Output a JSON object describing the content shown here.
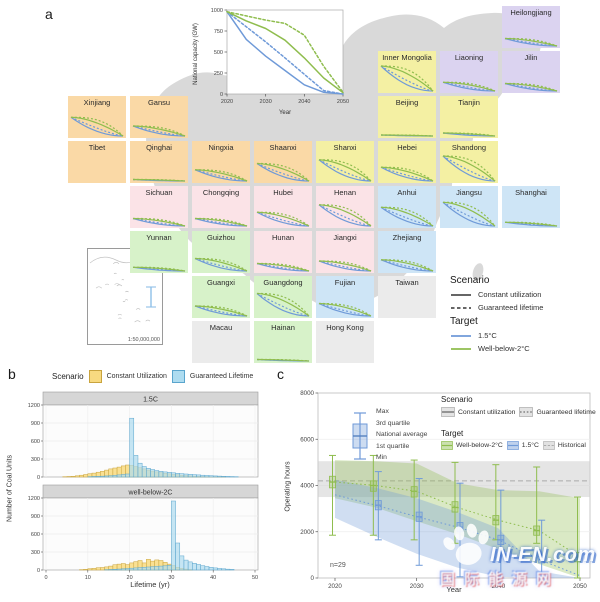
{
  "panels": {
    "a": "a",
    "b": "b",
    "c": "c"
  },
  "colors": {
    "green": "#8fbd4e",
    "blue": "#6f9ad8",
    "black": "#333333",
    "hist_yellow_fill": "#f8da80",
    "hist_yellow_stroke": "#c9a43e",
    "hist_blue_fill": "#aedcf0",
    "hist_blue_stroke": "#5aa5cd",
    "historical_fill": "#cfcfcf",
    "regions": {
      "northeast": "#dbd3f0",
      "north": "#f4f0a3",
      "northwest": "#fad9a6",
      "central": "#fbe3e7",
      "east": "#cee5f6",
      "south": "#d7f2c9",
      "none": "#ebebeb"
    }
  },
  "map": {
    "sea_inset_scale": "1:50,000,000",
    "legend": {
      "scenario_title": "Scenario",
      "scenarios": [
        {
          "label": "Constant utilization",
          "dash": false
        },
        {
          "label": "Guaranteed lifetime",
          "dash": true
        }
      ],
      "target_title": "Target",
      "targets": [
        {
          "label": "1.5°C",
          "color_key": "blue"
        },
        {
          "label": "Well-below-2°C",
          "color_key": "green"
        }
      ]
    },
    "tiles": [
      {
        "name": "Heilongjiang",
        "row": 0,
        "col": 7,
        "region": "northeast",
        "mag": 0.3
      },
      {
        "name": "Inner Mongolia",
        "row": 1,
        "col": 5,
        "region": "north",
        "mag": 1.0
      },
      {
        "name": "Liaoning",
        "row": 1,
        "col": 6,
        "region": "northeast",
        "mag": 0.35
      },
      {
        "name": "Jilin",
        "row": 1,
        "col": 7,
        "region": "northeast",
        "mag": 0.3
      },
      {
        "name": "Xinjiang",
        "row": 2,
        "col": 0,
        "region": "northwest",
        "mag": 0.75
      },
      {
        "name": "Gansu",
        "row": 2,
        "col": 1,
        "region": "northwest",
        "mag": 0.4
      },
      {
        "name": "Beijing",
        "row": 2,
        "col": 5,
        "region": "north",
        "mag": 0.04
      },
      {
        "name": "Tianjin",
        "row": 2,
        "col": 6,
        "region": "north",
        "mag": 0.12
      },
      {
        "name": "Tibet",
        "row": 3,
        "col": 0,
        "region": "northwest",
        "mag": 0
      },
      {
        "name": "Qinghai",
        "row": 3,
        "col": 1,
        "region": "northwest",
        "mag": 0.06
      },
      {
        "name": "Ningxia",
        "row": 3,
        "col": 2,
        "region": "northwest",
        "mag": 0.45
      },
      {
        "name": "Shaanxi",
        "row": 3,
        "col": 3,
        "region": "northwest",
        "mag": 0.7
      },
      {
        "name": "Shanxi",
        "row": 3,
        "col": 4,
        "region": "north",
        "mag": 0.85
      },
      {
        "name": "Hebei",
        "row": 3,
        "col": 5,
        "region": "north",
        "mag": 0.55
      },
      {
        "name": "Shandong",
        "row": 3,
        "col": 6,
        "region": "north",
        "mag": 1.0
      },
      {
        "name": "Sichuan",
        "row": 4,
        "col": 1,
        "region": "central",
        "mag": 0.3
      },
      {
        "name": "Chongqing",
        "row": 4,
        "col": 2,
        "region": "central",
        "mag": 0.3
      },
      {
        "name": "Hubei",
        "row": 4,
        "col": 3,
        "region": "central",
        "mag": 0.55
      },
      {
        "name": "Henan",
        "row": 4,
        "col": 4,
        "region": "central",
        "mag": 0.85
      },
      {
        "name": "Anhui",
        "row": 4,
        "col": 5,
        "region": "east",
        "mag": 0.75
      },
      {
        "name": "Jiangsu",
        "row": 4,
        "col": 6,
        "region": "east",
        "mag": 0.95
      },
      {
        "name": "Shanghai",
        "row": 4,
        "col": 7,
        "region": "east",
        "mag": 0.15
      },
      {
        "name": "Yunnan",
        "row": 5,
        "col": 1,
        "region": "south",
        "mag": 0.15
      },
      {
        "name": "Guizhou",
        "row": 5,
        "col": 2,
        "region": "south",
        "mag": 0.5
      },
      {
        "name": "Hunan",
        "row": 5,
        "col": 3,
        "region": "central",
        "mag": 0.3
      },
      {
        "name": "Jiangxi",
        "row": 5,
        "col": 4,
        "region": "central",
        "mag": 0.4
      },
      {
        "name": "Zhejiang",
        "row": 5,
        "col": 5,
        "region": "east",
        "mag": 0.45
      },
      {
        "name": "Guangxi",
        "row": 6,
        "col": 2,
        "region": "south",
        "mag": 0.4
      },
      {
        "name": "Guangdong",
        "row": 6,
        "col": 3,
        "region": "south",
        "mag": 0.9
      },
      {
        "name": "Fujian",
        "row": 6,
        "col": 4,
        "region": "east",
        "mag": 0.5
      },
      {
        "name": "Taiwan",
        "row": 6,
        "col": 5,
        "region": "none",
        "mag": 0
      },
      {
        "name": "Macau",
        "row": 7,
        "col": 2,
        "region": "none",
        "mag": 0
      },
      {
        "name": "Hainan",
        "row": 7,
        "col": 3,
        "region": "south",
        "mag": 0.06
      },
      {
        "name": "Hong Kong",
        "row": 7,
        "col": 4,
        "region": "none",
        "mag": 0
      }
    ]
  },
  "chart_data": [
    {
      "id": "national_capacity",
      "type": "line",
      "ylabel": "National capacity (GW)",
      "xlabel": "Year",
      "x": [
        2020,
        2025,
        2030,
        2035,
        2040,
        2045,
        2050
      ],
      "ylim": [
        0,
        1000
      ],
      "yticks": [
        0,
        250,
        500,
        750,
        1000
      ],
      "xticks": [
        2020,
        2030,
        2040,
        2050
      ],
      "series": [
        {
          "name": "1.5C constant utilization",
          "color": "blue",
          "dash": false,
          "values": [
            980,
            650,
            450,
            280,
            110,
            20,
            0
          ]
        },
        {
          "name": "1.5C guaranteed lifetime",
          "color": "blue",
          "dash": true,
          "values": [
            980,
            800,
            620,
            430,
            235,
            40,
            0
          ]
        },
        {
          "name": "Well-below-2C constant utilization",
          "color": "green",
          "dash": false,
          "values": [
            980,
            870,
            780,
            640,
            430,
            190,
            15
          ]
        },
        {
          "name": "Well-below-2C guaranteed lifetime",
          "color": "green",
          "dash": true,
          "values": [
            980,
            930,
            880,
            840,
            700,
            330,
            20
          ]
        }
      ]
    },
    {
      "id": "lifetime_histograms",
      "type": "bar",
      "legend_title": "Scenario",
      "legend": [
        {
          "label": "Constant Utilization",
          "color": "yellow"
        },
        {
          "label": "Guaranteed Lifetime",
          "color": "blue"
        }
      ],
      "ylabel": "Number of Coal Units",
      "xlabel": "Lifetime (yr)",
      "ylim": [
        0,
        1200
      ],
      "yticks": [
        0,
        300,
        600,
        900,
        1200
      ],
      "xticks": [
        0,
        10,
        20,
        30,
        40,
        50
      ],
      "facets": [
        {
          "label": "1.5C",
          "bins": [
            [
              4,
              5,
              0
            ],
            [
              5,
              8,
              0
            ],
            [
              6,
              12,
              0
            ],
            [
              7,
              20,
              0
            ],
            [
              8,
              30,
              0
            ],
            [
              9,
              42,
              0
            ],
            [
              10,
              55,
              5
            ],
            [
              11,
              65,
              8
            ],
            [
              12,
              80,
              10
            ],
            [
              13,
              95,
              14
            ],
            [
              14,
              115,
              18
            ],
            [
              15,
              135,
              22
            ],
            [
              16,
              150,
              28
            ],
            [
              17,
              165,
              35
            ],
            [
              18,
              185,
              42
            ],
            [
              19,
              200,
              50
            ],
            [
              20,
              195,
              980
            ],
            [
              21,
              175,
              360
            ],
            [
              22,
              155,
              230
            ],
            [
              23,
              135,
              175
            ],
            [
              24,
              115,
              145
            ],
            [
              25,
              98,
              125
            ],
            [
              26,
              85,
              108
            ],
            [
              27,
              72,
              95
            ],
            [
              28,
              62,
              85
            ],
            [
              29,
              52,
              78
            ],
            [
              30,
              45,
              70
            ],
            [
              31,
              38,
              62
            ],
            [
              32,
              30,
              56
            ],
            [
              33,
              24,
              50
            ],
            [
              34,
              18,
              45
            ],
            [
              35,
              14,
              40
            ],
            [
              36,
              10,
              35
            ],
            [
              37,
              7,
              30
            ],
            [
              38,
              5,
              26
            ],
            [
              39,
              4,
              22
            ],
            [
              40,
              3,
              18
            ],
            [
              41,
              2,
              15
            ],
            [
              42,
              1,
              12
            ],
            [
              43,
              0,
              9
            ],
            [
              44,
              0,
              7
            ],
            [
              45,
              0,
              5
            ]
          ]
        },
        {
          "label": "well-below-2C",
          "bins": [
            [
              8,
              6,
              0
            ],
            [
              9,
              12,
              0
            ],
            [
              10,
              22,
              0
            ],
            [
              11,
              28,
              0
            ],
            [
              12,
              38,
              0
            ],
            [
              13,
              42,
              0
            ],
            [
              14,
              52,
              5
            ],
            [
              15,
              65,
              8
            ],
            [
              16,
              88,
              12
            ],
            [
              17,
              98,
              16
            ],
            [
              18,
              108,
              20
            ],
            [
              19,
              90,
              25
            ],
            [
              20,
              118,
              30
            ],
            [
              21,
              140,
              35
            ],
            [
              22,
              158,
              40
            ],
            [
              23,
              118,
              45
            ],
            [
              24,
              178,
              50
            ],
            [
              25,
              148,
              55
            ],
            [
              26,
              168,
              60
            ],
            [
              27,
              158,
              65
            ],
            [
              28,
              128,
              70
            ],
            [
              29,
              98,
              78
            ],
            [
              30,
              75,
              1150
            ],
            [
              31,
              45,
              450
            ],
            [
              32,
              28,
              235
            ],
            [
              33,
              15,
              165
            ],
            [
              34,
              8,
              135
            ],
            [
              35,
              0,
              112
            ],
            [
              36,
              0,
              92
            ],
            [
              37,
              0,
              72
            ],
            [
              38,
              0,
              58
            ],
            [
              39,
              0,
              45
            ],
            [
              40,
              0,
              35
            ],
            [
              41,
              0,
              26
            ],
            [
              42,
              0,
              20
            ],
            [
              43,
              0,
              14
            ],
            [
              44,
              0,
              10
            ]
          ]
        }
      ]
    },
    {
      "id": "operating_hours",
      "type": "line",
      "ylabel": "Operating hours",
      "xlabel": "Year",
      "annotation": "n=29",
      "ylim": [
        0,
        8000
      ],
      "yticks": [
        0,
        2000,
        4000,
        6000,
        8000
      ],
      "xticks": [
        2020,
        2030,
        2040,
        2050
      ],
      "x": [
        2020,
        2025,
        2030,
        2035,
        2040,
        2045,
        2050
      ],
      "box_key": [
        "Max",
        "3rd quartile",
        "National average",
        "1st quartile",
        "Min"
      ],
      "scenario_title": "Scenario",
      "scenarios": [
        {
          "label": "Constant utilization",
          "dash": false
        },
        {
          "label": "Guaranteed lifetime",
          "dash": true
        }
      ],
      "target_title": "Target",
      "targets": [
        {
          "label": "Well-below-2°C",
          "color_key": "green"
        },
        {
          "label": "1.5°C",
          "color_key": "blue"
        },
        {
          "label": "Historical",
          "color_key": "historical"
        }
      ],
      "historical": {
        "band": [
          3500,
          5050
        ],
        "average": 4200
      },
      "series": [
        {
          "name": "Well-below-2°C",
          "color": "green",
          "center": [
            4150,
            4000,
            3750,
            3050,
            2500,
            2050,
            900
          ],
          "q1": [
            3900,
            3750,
            3500,
            2850,
            2300,
            1850,
            700
          ],
          "q3": [
            4400,
            4200,
            3950,
            3300,
            2700,
            2250,
            1100
          ],
          "min": [
            1850,
            1850,
            1650,
            1500,
            1650,
            1500,
            0
          ],
          "max": [
            5300,
            5300,
            5100,
            5000,
            4900,
            4800,
            3500
          ],
          "band_hi": [
            5100,
            5050,
            4950,
            4100,
            3800,
            3750,
            3450
          ],
          "band_lo": [
            3450,
            3050,
            2450,
            1900,
            1250,
            600,
            0
          ]
        },
        {
          "name": "1.5°C",
          "color": "blue",
          "center": [
            3600,
            3150,
            2650,
            2200,
            1650,
            800,
            100
          ],
          "q1": [
            null,
            2950,
            2450,
            2000,
            1450,
            650,
            null
          ],
          "q3": [
            null,
            3350,
            2850,
            2400,
            1850,
            950,
            null
          ],
          "min": [
            null,
            1650,
            550,
            50,
            0,
            0,
            null
          ],
          "max": [
            null,
            4600,
            4300,
            4100,
            3800,
            2500,
            null
          ],
          "band_hi": [
            4250,
            3900,
            3450,
            2850,
            2150,
            300,
            0
          ],
          "band_lo": [
            2600,
            1800,
            1050,
            450,
            50,
            0,
            0
          ]
        }
      ]
    }
  ],
  "watermark": {
    "line1": "IN-EN.com",
    "line2": "国际能源网"
  }
}
